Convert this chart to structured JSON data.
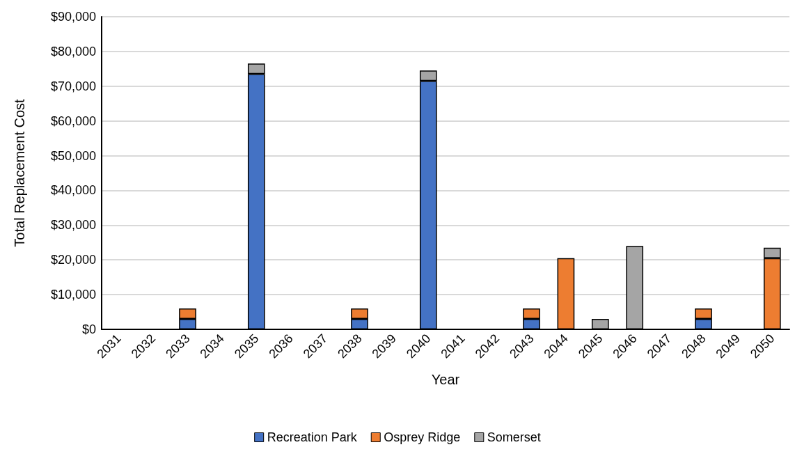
{
  "chart_data": {
    "type": "bar",
    "stacked": true,
    "xlabel": "Year",
    "ylabel": "Total Replacement Cost",
    "categories": [
      "2031",
      "2032",
      "2033",
      "2034",
      "2035",
      "2036",
      "2037",
      "2038",
      "2039",
      "2040",
      "2041",
      "2042",
      "2043",
      "2044",
      "2045",
      "2046",
      "2047",
      "2048",
      "2049",
      "2050"
    ],
    "series": [
      {
        "name": "Recreation Park",
        "color": "#4472c4",
        "values": [
          null,
          null,
          3000,
          null,
          73500,
          null,
          null,
          3000,
          null,
          71500,
          null,
          null,
          3000,
          null,
          null,
          null,
          null,
          3000,
          null,
          null
        ]
      },
      {
        "name": "Osprey Ridge",
        "color": "#ed7d31",
        "values": [
          null,
          null,
          3000,
          null,
          null,
          null,
          null,
          3000,
          null,
          null,
          null,
          null,
          3000,
          20500,
          null,
          null,
          null,
          3000,
          null,
          20500
        ]
      },
      {
        "name": "Somerset",
        "color": "#a5a5a5",
        "values": [
          null,
          null,
          null,
          null,
          3000,
          null,
          null,
          null,
          null,
          3000,
          null,
          null,
          null,
          null,
          3000,
          24000,
          null,
          null,
          null,
          3000
        ]
      }
    ],
    "ylim": [
      0,
      90000
    ],
    "yticks": [
      {
        "value": 0,
        "label": "$0"
      },
      {
        "value": 10000,
        "label": "$10,000"
      },
      {
        "value": 20000,
        "label": "$20,000"
      },
      {
        "value": 30000,
        "label": "$30,000"
      },
      {
        "value": 40000,
        "label": "$40,000"
      },
      {
        "value": 50000,
        "label": "$50,000"
      },
      {
        "value": 60000,
        "label": "$60,000"
      },
      {
        "value": 70000,
        "label": "$70,000"
      },
      {
        "value": 80000,
        "label": "$80,000"
      },
      {
        "value": 90000,
        "label": "$90,000"
      }
    ],
    "grid": "y",
    "legend": "bottom"
  }
}
